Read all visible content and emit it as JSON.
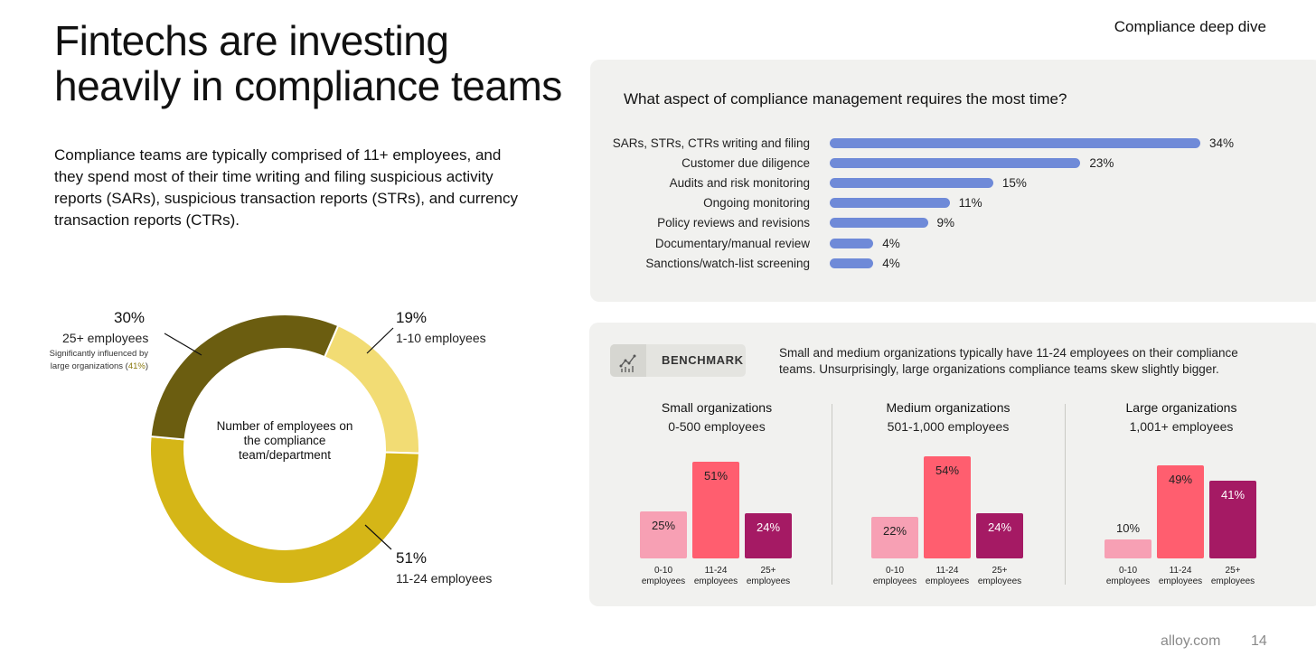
{
  "header": {
    "title_line1": "Fintechs are investing",
    "title_line2": "heavily in compliance teams",
    "section": "Compliance deep dive"
  },
  "intro": "Compliance teams are typically comprised of 11+ employees, and they spend most of their time writing and filing suspicious activity reports (SARs), suspicious transaction reports (STRs), and currency transaction reports (CTRs).",
  "colors": {
    "bar_blue": "#6f8ad8",
    "donut_dark": "#6b5d10",
    "donut_light": "#f2dc74",
    "donut_mid": "#d5b617",
    "bar_pink_light": "#f7a0b4",
    "bar_pink": "#ff5e6f",
    "bar_magenta": "#a51a64"
  },
  "benchmark": {
    "label": "BENCHMARK",
    "icon": "chart-trend-icon",
    "description": "Small and medium organizations typically have 11-24 employees on their compliance teams. Unsurprisingly, large organizations compliance teams skew slightly bigger."
  },
  "footer": {
    "site": "alloy.com",
    "page": "14"
  },
  "chart_data": [
    {
      "type": "pie",
      "subtype": "donut",
      "title": "Number of employees on the compliance team/department",
      "slices": [
        {
          "label": "25+ employees",
          "value": 30,
          "pct": "30%",
          "note_before": "Significantly influenced by large organizations (",
          "note_highlight": "41%",
          "note_after": ")",
          "color": "#6b5d10"
        },
        {
          "label": "1-10 employees",
          "value": 19,
          "pct": "19%",
          "color": "#f2dc74"
        },
        {
          "label": "11-24 employees",
          "value": 51,
          "pct": "51%",
          "color": "#d5b617"
        }
      ]
    },
    {
      "type": "bar",
      "orientation": "horizontal",
      "title": "What aspect of compliance management requires the most time?",
      "categories": [
        "SARs, STRs, CTRs writing and filing",
        "Customer due diligence",
        "Audits and risk monitoring",
        "Ongoing monitoring",
        "Policy reviews and revisions",
        "Documentary/manual review",
        "Sanctions/watch-list screening"
      ],
      "values": [
        34,
        23,
        15,
        11,
        9,
        4,
        4
      ],
      "labels": [
        "34%",
        "23%",
        "15%",
        "11%",
        "9%",
        "4%",
        "4%"
      ],
      "xlim": [
        0,
        34
      ]
    },
    {
      "type": "bar",
      "title": "Small organizations",
      "subtitle": "0-500 employees",
      "categories": [
        [
          "0-10",
          "employees"
        ],
        [
          "11-24",
          "employees"
        ],
        [
          "25+",
          "employees"
        ]
      ],
      "values": [
        25,
        51,
        24
      ],
      "labels": [
        "25%",
        "51%",
        "24%"
      ],
      "ylim": [
        0,
        54
      ]
    },
    {
      "type": "bar",
      "title": "Medium organizations",
      "subtitle": "501-1,000 employees",
      "categories": [
        [
          "0-10",
          "employees"
        ],
        [
          "11-24",
          "employees"
        ],
        [
          "25+",
          "employees"
        ]
      ],
      "values": [
        22,
        54,
        24
      ],
      "labels": [
        "22%",
        "54%",
        "24%"
      ],
      "ylim": [
        0,
        54
      ]
    },
    {
      "type": "bar",
      "title": "Large organizations",
      "subtitle": "1,001+ employees",
      "categories": [
        [
          "0-10",
          "employees"
        ],
        [
          "11-24",
          "employees"
        ],
        [
          "25+",
          "employees"
        ]
      ],
      "values": [
        10,
        49,
        41
      ],
      "labels": [
        "10%",
        "49%",
        "41%"
      ],
      "ylim": [
        0,
        54
      ]
    }
  ]
}
